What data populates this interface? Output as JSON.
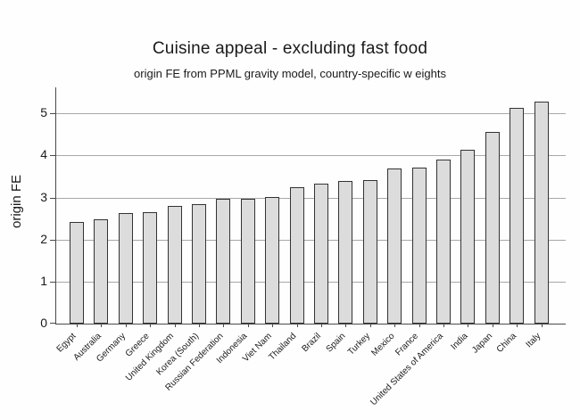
{
  "page": {
    "background_color": "#fefefe",
    "text_color": "#1a1a1a"
  },
  "chart_data": {
    "type": "bar",
    "title": "Cuisine appeal - excluding fast food",
    "subtitle": "origin FE from PPML gravity model, country-specific w eights",
    "xlabel": "",
    "ylabel": "origin FE",
    "categories": [
      "Egypt",
      "Australia",
      "Germany",
      "Greece",
      "United Kingdom",
      "Korea (South)",
      "Russian Federation",
      "Indonesia",
      "Viet Nam",
      "Thailand",
      "Brazil",
      "Spain",
      "Turkey",
      "Mexico",
      "France",
      "United States of America",
      "India",
      "Japan",
      "China",
      "Italy"
    ],
    "values": [
      2.42,
      2.49,
      2.64,
      2.66,
      2.79,
      2.85,
      2.96,
      2.97,
      3.01,
      3.25,
      3.34,
      3.4,
      3.42,
      3.69,
      3.71,
      3.91,
      4.14,
      4.57,
      5.14,
      5.28
    ],
    "yticks": [
      0,
      1,
      2,
      3,
      4,
      5
    ],
    "ylim": [
      0,
      5.62
    ],
    "grid": "horizontal",
    "legend": "none",
    "x_label_rotation_deg": -45,
    "colors": {
      "bar_fill": "#dcdcdc",
      "bar_border": "#333333",
      "gridline": "#a8a8a8",
      "axis": "#4a4a4a",
      "text": "#1a1a1a"
    }
  }
}
